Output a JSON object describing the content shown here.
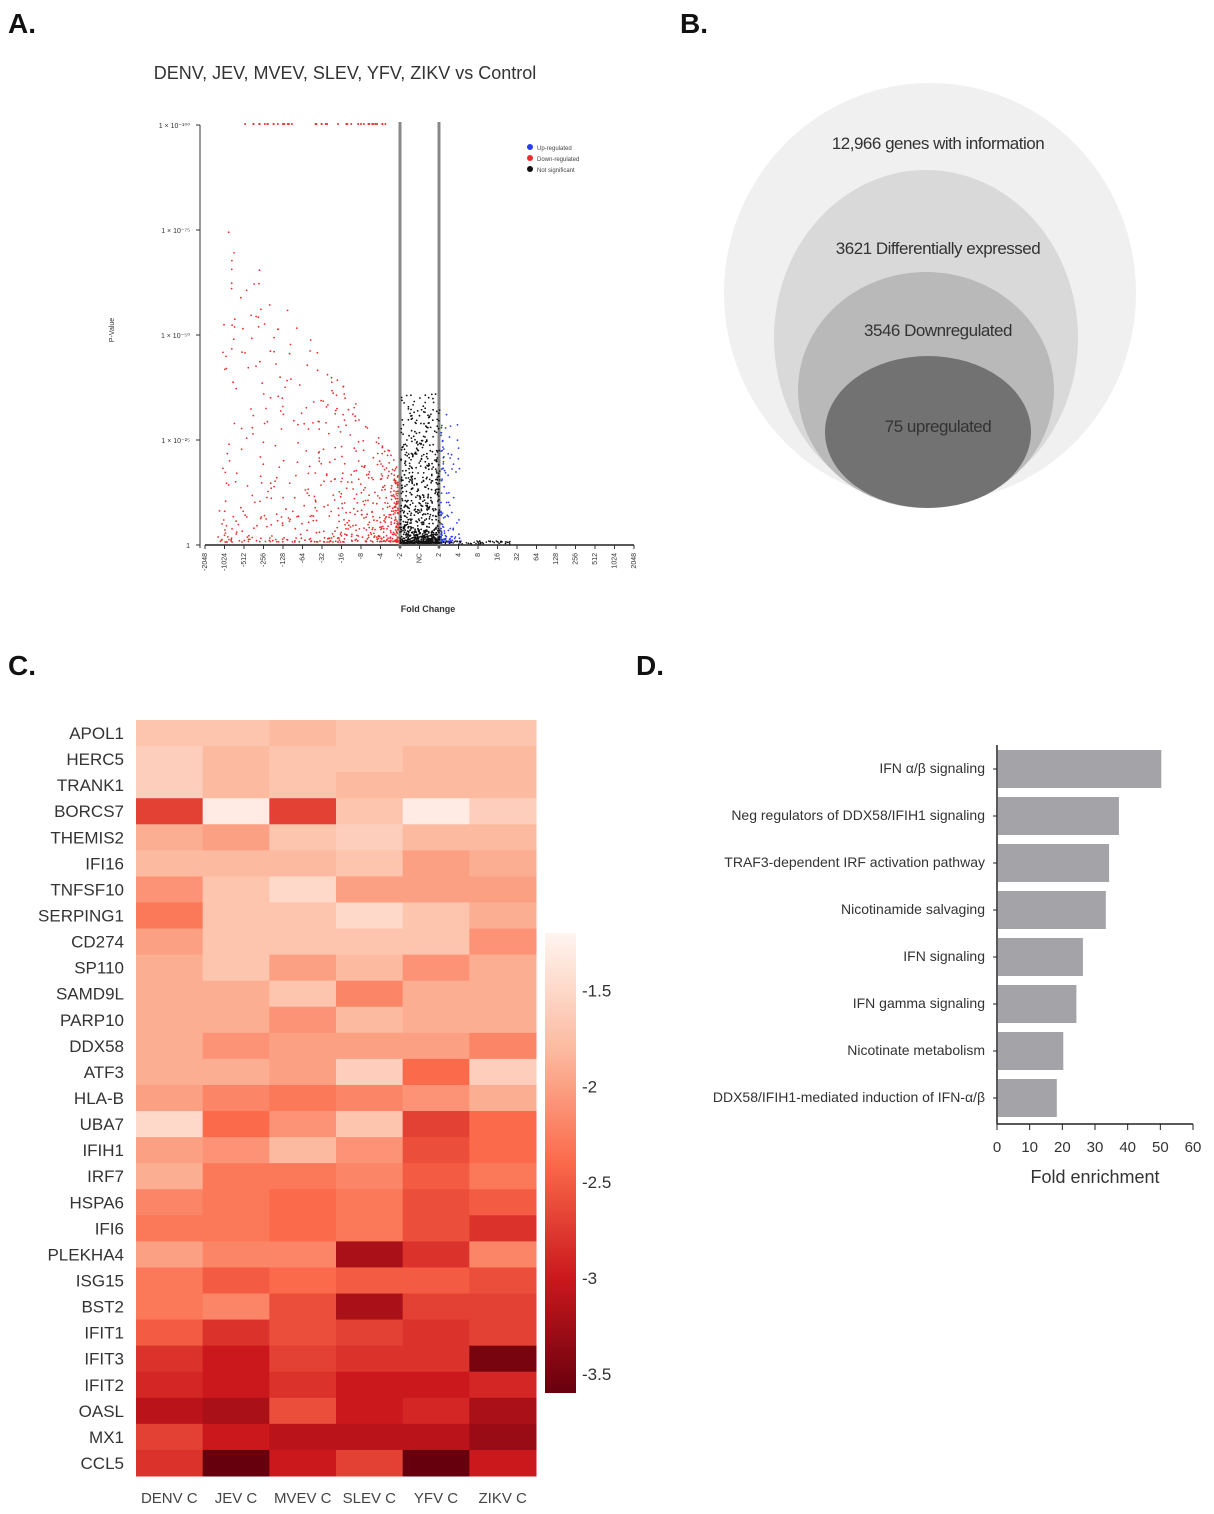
{
  "panels": {
    "a": "A.",
    "b": "B.",
    "c": "C.",
    "d": "D."
  },
  "colors": {
    "up": "#2b3cf5",
    "down": "#ee2b2b",
    "ns": "#111111",
    "bar": "#a3a3a8",
    "venn": [
      "#f0f0f0",
      "#d9d9d9",
      "#b9b9b9",
      "#727272"
    ],
    "heat_light": "#fdeee8",
    "heat_dark": "#67000d"
  },
  "chart_data": [
    {
      "type": "scatter",
      "title": "DENV, JEV, MVEV, SLEV, YFV, ZIKV vs Control",
      "xlabel": "Fold Change",
      "ylabel": "P-Value",
      "x_ticks": [
        "-2048",
        "-1024",
        "-512",
        "-256",
        "-128",
        "-64",
        "-32",
        "-16",
        "-8",
        "-4",
        "-2",
        "NC",
        "2",
        "4",
        "8",
        "16",
        "32",
        "64",
        "128",
        "256",
        "512",
        "1024",
        "2048"
      ],
      "y_ticks": [
        "1",
        "1 × 10⁻²⁵",
        "1 × 10⁻⁵⁰",
        "1 × 10⁻⁷⁵",
        "1 × 10⁻¹⁰⁰"
      ],
      "legend": [
        "Up-regulated",
        "Down-regulated",
        "Not significant"
      ],
      "threshold_fold_change": [
        -2,
        2
      ],
      "note": "Volcano plot of log2 fold change vs -log10 P-value; many down-regulated genes (red) on the left, few up-regulated (blue) on the right."
    },
    {
      "type": "venn",
      "sets": [
        {
          "label": "12,966 genes with information",
          "count": 12966
        },
        {
          "label": "3621 Differentially expressed",
          "count": 3621
        },
        {
          "label": "3546 Downregulated",
          "count": 3546
        },
        {
          "label": "75 upregulated",
          "count": 75
        }
      ]
    },
    {
      "type": "heatmap",
      "columns": [
        "DENV C",
        "JEV C",
        "MVEV C",
        "SLEV C",
        "YFV C",
        "ZIKV C"
      ],
      "rows": [
        "APOL1",
        "HERC5",
        "TRANK1",
        "BORCS7",
        "THEMIS2",
        "IFI16",
        "TNFSF10",
        "SERPING1",
        "CD274",
        "SP110",
        "SAMD9L",
        "PARP10",
        "DDX58",
        "ATF3",
        "HLA-B",
        "UBA7",
        "IFIH1",
        "IRF7",
        "HSPA6",
        "IFI6",
        "PLEKHA4",
        "ISG15",
        "BST2",
        "IFIT1",
        "IFIT3",
        "IFIT2",
        "OASL",
        "MX1",
        "CCL5"
      ],
      "values": [
        [
          -1.7,
          -1.7,
          -1.8,
          -1.7,
          -1.7,
          -1.7
        ],
        [
          -1.6,
          -1.8,
          -1.7,
          -1.7,
          -1.8,
          -1.8
        ],
        [
          -1.6,
          -1.8,
          -1.7,
          -1.8,
          -1.8,
          -1.8
        ],
        [
          -2.7,
          -1.3,
          -2.7,
          -1.7,
          -1.3,
          -1.6
        ],
        [
          -1.9,
          -2.0,
          -1.7,
          -1.6,
          -1.8,
          -1.8
        ],
        [
          -1.8,
          -1.8,
          -1.8,
          -1.7,
          -2.0,
          -1.9
        ],
        [
          -2.1,
          -1.7,
          -1.5,
          -2.0,
          -2.0,
          -2.0
        ],
        [
          -2.3,
          -1.7,
          -1.7,
          -1.5,
          -1.7,
          -1.9
        ],
        [
          -2.0,
          -1.7,
          -1.7,
          -1.7,
          -1.7,
          -2.1
        ],
        [
          -1.9,
          -1.7,
          -2.0,
          -1.8,
          -2.1,
          -1.9
        ],
        [
          -1.9,
          -1.9,
          -1.7,
          -2.2,
          -1.9,
          -1.9
        ],
        [
          -1.9,
          -1.9,
          -2.1,
          -1.8,
          -1.9,
          -1.9
        ],
        [
          -1.9,
          -2.1,
          -2.0,
          -2.0,
          -2.0,
          -2.2
        ],
        [
          -1.9,
          -1.9,
          -2.0,
          -1.6,
          -2.4,
          -1.6
        ],
        [
          -2.0,
          -2.2,
          -2.3,
          -2.2,
          -2.1,
          -1.9
        ],
        [
          -1.5,
          -2.4,
          -2.1,
          -1.7,
          -2.7,
          -2.4
        ],
        [
          -2.0,
          -2.1,
          -1.8,
          -2.1,
          -2.6,
          -2.4
        ],
        [
          -1.9,
          -2.3,
          -2.3,
          -2.2,
          -2.5,
          -2.3
        ],
        [
          -2.2,
          -2.3,
          -2.4,
          -2.3,
          -2.6,
          -2.5
        ],
        [
          -2.3,
          -2.3,
          -2.4,
          -2.3,
          -2.6,
          -2.8
        ],
        [
          -2.0,
          -2.2,
          -2.2,
          -3.2,
          -2.8,
          -2.2
        ],
        [
          -2.3,
          -2.5,
          -2.4,
          -2.5,
          -2.5,
          -2.6
        ],
        [
          -2.3,
          -2.2,
          -2.6,
          -3.2,
          -2.7,
          -2.7
        ],
        [
          -2.5,
          -2.8,
          -2.6,
          -2.7,
          -2.8,
          -2.7
        ],
        [
          -2.8,
          -3.0,
          -2.7,
          -2.8,
          -2.8,
          -3.5
        ],
        [
          -2.9,
          -3.0,
          -2.8,
          -3.0,
          -3.0,
          -2.9
        ],
        [
          -3.1,
          -3.2,
          -2.6,
          -3.0,
          -2.9,
          -3.2
        ],
        [
          -2.7,
          -3.0,
          -3.1,
          -3.1,
          -3.1,
          -3.3
        ],
        [
          -2.8,
          -3.6,
          -3.0,
          -2.7,
          -3.6,
          -3.0
        ]
      ],
      "colorbar_ticks": [
        "-1.5",
        "-2",
        "-2.5",
        "-3",
        "-3.5"
      ],
      "colorbar_range": [
        -3.6,
        -1.2
      ]
    },
    {
      "type": "bar",
      "orientation": "horizontal",
      "categories": [
        "IFN α/β signaling",
        "Neg regulators of DDX58/IFIH1 signaling",
        "TRAF3-dependent IRF activation pathway",
        "Nicotinamide salvaging",
        "IFN signaling",
        "IFN gamma signaling",
        "Nicotinate metabolism",
        "DDX58/IFIH1-mediated induction of IFN-α/β"
      ],
      "values": [
        50,
        37,
        34,
        33,
        26,
        24,
        20,
        18
      ],
      "xlabel": "Fold enrichment",
      "x_ticks": [
        "0",
        "10",
        "20",
        "30",
        "40",
        "50",
        "60"
      ],
      "xlim": [
        0,
        60
      ]
    }
  ]
}
